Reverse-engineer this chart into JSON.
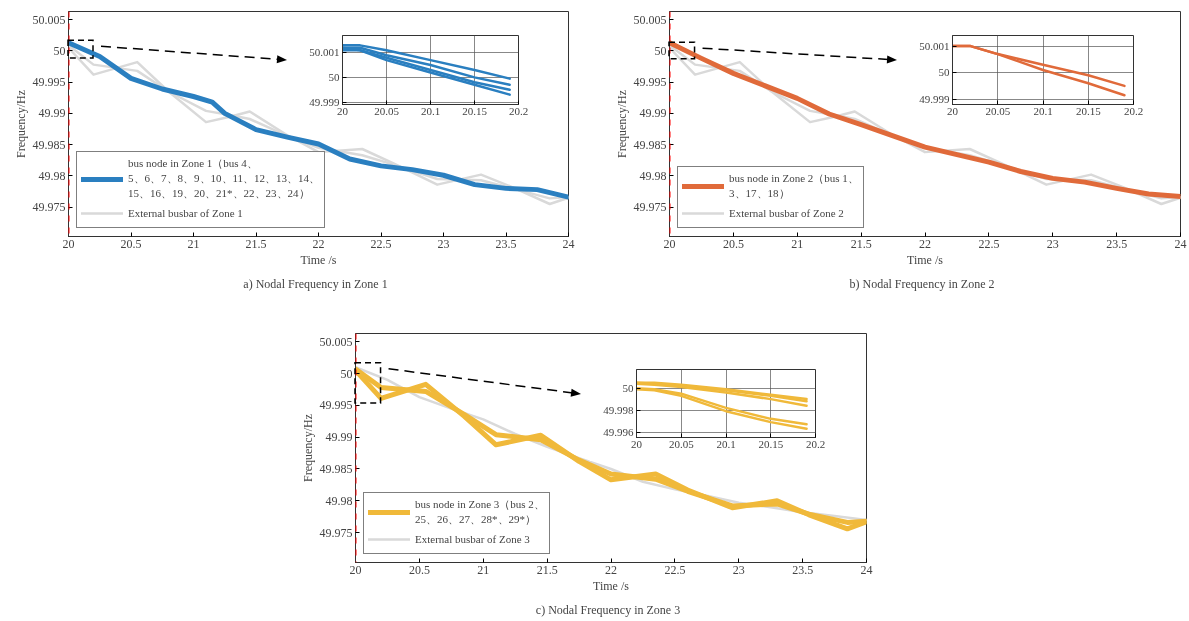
{
  "chart_data": [
    {
      "type": "line",
      "title": "a)   Nodal Frequency in Zone 1",
      "xlabel": "Time /s",
      "ylabel": "Frequency/Hz",
      "xlim": [
        20,
        24
      ],
      "ylim": [
        49.9703,
        50.0063
      ],
      "xticks": [
        20,
        20.5,
        21,
        21.5,
        22,
        22.5,
        23,
        23.5,
        24
      ],
      "yticks": [
        49.975,
        49.98,
        49.985,
        49.99,
        49.995,
        50,
        50.005
      ],
      "grid": false,
      "legend": "bottom left",
      "ref_lines": [
        {
          "axis": "x",
          "value": 20,
          "color": "#ff0000",
          "line_style": "dashed"
        }
      ],
      "series": [
        {
          "name": "bus node in Zone 1（bus 4、5、6、7、8、9、10、11、12、13、14、15、16、19、20、21*、22、23、24）",
          "color": "#2a7fc0",
          "x": [
            20,
            20.25,
            20.5,
            20.75,
            21,
            21.15,
            21.25,
            21.5,
            21.75,
            22,
            22.25,
            22.5,
            22.75,
            23,
            23.25,
            23.5,
            23.75,
            24
          ],
          "values": [
            50.0013,
            49.9991,
            49.9956,
            49.9939,
            49.9927,
            49.9918,
            49.99,
            49.9874,
            49.9862,
            49.9851,
            49.9827,
            49.9816,
            49.981,
            49.9801,
            49.9786,
            49.978,
            49.9778,
            49.9766
          ]
        },
        {
          "name": "External busbar of Zone 1",
          "color": "#d9d9d9",
          "x": [
            20,
            20.2,
            20.55,
            20.8,
            21.1,
            21.3,
            21.45,
            21.75,
            22,
            22.35,
            22.6,
            22.95,
            23.3,
            23.55,
            23.85,
            24
          ],
          "values": [
            50.0005,
            49.9962,
            49.9982,
            49.9935,
            49.9886,
            49.9895,
            49.9903,
            49.9865,
            49.9838,
            49.9843,
            49.982,
            49.9786,
            49.9802,
            49.9782,
            49.9755,
            49.9765
          ]
        },
        {
          "color": "#d9d9d9",
          "x": [
            20,
            20.2,
            20.55,
            20.8,
            21.1,
            21.3,
            21.45,
            21.75,
            22,
            22.35,
            22.6,
            22.95,
            23.3,
            23.55,
            23.85,
            24
          ],
          "values": [
            50.0009,
            49.9978,
            49.9968,
            49.9935,
            49.9904,
            49.9897,
            49.9891,
            49.9864,
            49.9845,
            49.9833,
            49.9818,
            49.9795,
            49.9793,
            49.978,
            49.9764,
            49.9766
          ]
        }
      ]
    },
    {
      "type": "line",
      "xlim": [
        20,
        20.2
      ],
      "ylim": [
        49.9989,
        50.0017
      ],
      "xticks": [
        20,
        20.05,
        20.1,
        20.15,
        20.2
      ],
      "yticks": [
        49.999,
        50,
        50.001
      ],
      "grid": true,
      "series": [
        {
          "color": "#2a7fc0",
          "x": [
            20,
            20.02,
            20.05,
            20.1,
            20.15,
            20.19
          ],
          "values": [
            50.0013,
            50.0013,
            50.0011,
            50.0007,
            50.0003,
            49.99995
          ]
        },
        {
          "color": "#2a7fc0",
          "x": [
            20,
            20.02,
            20.05,
            20.1,
            20.15,
            20.19
          ],
          "values": [
            50.0012,
            50.0012,
            50.0009,
            50.0005,
            50.0,
            49.9997
          ]
        },
        {
          "color": "#2a7fc0",
          "x": [
            20,
            20.02,
            20.05,
            20.1,
            20.15,
            20.19
          ],
          "values": [
            50.0012,
            50.0011,
            50.0008,
            50.0003,
            49.9998,
            49.9995
          ]
        },
        {
          "color": "#2a7fc0",
          "x": [
            20,
            20.02,
            20.05,
            20.1,
            20.15,
            20.19
          ],
          "values": [
            50.0011,
            50.0011,
            50.0007,
            50.0002,
            49.9997,
            49.9993
          ]
        }
      ]
    },
    {
      "type": "line",
      "title": "b)   Nodal Frequency in Zone 2",
      "xlabel": "Time /s",
      "ylabel": "Frequency/Hz",
      "xlim": [
        20,
        24
      ],
      "ylim": [
        49.9703,
        50.0063
      ],
      "xticks": [
        20,
        20.5,
        21,
        21.5,
        22,
        22.5,
        23,
        23.5,
        24
      ],
      "yticks": [
        49.975,
        49.98,
        49.985,
        49.99,
        49.995,
        50,
        50.005
      ],
      "grid": false,
      "legend": "bottom left",
      "ref_lines": [
        {
          "axis": "x",
          "value": 20,
          "color": "#ff0000",
          "line_style": "dashed"
        }
      ],
      "series": [
        {
          "name": "bus node in Zone 2（bus 1、3、17、18）",
          "color": "#e06a3a",
          "x": [
            20,
            20.25,
            20.5,
            20.75,
            21,
            21.25,
            21.5,
            21.75,
            22,
            22.25,
            22.5,
            22.75,
            23,
            23.25,
            23.5,
            23.75,
            24
          ],
          "values": [
            50.0013,
            49.9988,
            49.9964,
            49.9944,
            49.9924,
            49.9899,
            49.9882,
            49.9864,
            49.9846,
            49.9834,
            49.9822,
            49.9807,
            49.9796,
            49.979,
            49.978,
            49.9771,
            49.9767
          ]
        },
        {
          "name": "External busbar of Zone 2",
          "color": "#d9d9d9",
          "x": [
            20,
            20.2,
            20.55,
            20.8,
            21.1,
            21.3,
            21.45,
            21.75,
            22,
            22.35,
            22.6,
            22.95,
            23.3,
            23.55,
            23.85,
            24
          ],
          "values": [
            50.0005,
            49.9962,
            49.9982,
            49.9935,
            49.9886,
            49.9895,
            49.9903,
            49.9865,
            49.9838,
            49.9843,
            49.982,
            49.9786,
            49.9802,
            49.9782,
            49.9755,
            49.9765
          ]
        },
        {
          "color": "#d9d9d9",
          "x": [
            20,
            20.2,
            20.55,
            20.8,
            21.1,
            21.3,
            21.45,
            21.75,
            22,
            22.35,
            22.6,
            22.95,
            23.3,
            23.55,
            23.85,
            24
          ],
          "values": [
            50.0009,
            49.9978,
            49.9968,
            49.9935,
            49.9904,
            49.9897,
            49.9891,
            49.9864,
            49.9845,
            49.9833,
            49.9818,
            49.9795,
            49.9793,
            49.978,
            49.9764,
            49.9766
          ]
        }
      ]
    },
    {
      "type": "line",
      "xlim": [
        20,
        20.2
      ],
      "ylim": [
        49.9988,
        50.0014
      ],
      "xticks": [
        20,
        20.05,
        20.1,
        20.15,
        20.2
      ],
      "yticks": [
        49.999,
        50,
        50.001
      ],
      "grid": true,
      "series": [
        {
          "color": "#e06a3a",
          "x": [
            20,
            20.02,
            20.05,
            20.1,
            20.15,
            20.19
          ],
          "values": [
            50.001,
            50.001,
            50.0007,
            50.0003,
            49.9999,
            49.9995
          ]
        },
        {
          "color": "#e06a3a",
          "x": [
            20,
            20.02,
            20.05,
            20.1,
            20.15,
            20.19
          ],
          "values": [
            50.001,
            50.001,
            50.0007,
            50.0001,
            49.9996,
            49.99915
          ]
        }
      ]
    },
    {
      "type": "line",
      "title": "c)   Nodal Frequency in Zone 3",
      "xlabel": "Time /s",
      "ylabel": "Frequency/Hz",
      "xlim": [
        20,
        24
      ],
      "ylim": [
        49.9703,
        50.0063
      ],
      "xticks": [
        20,
        20.5,
        21,
        21.5,
        22,
        22.5,
        23,
        23.5,
        24
      ],
      "yticks": [
        49.975,
        49.98,
        49.985,
        49.99,
        49.995,
        50,
        50.005
      ],
      "grid": false,
      "legend": "bottom left",
      "ref_lines": [
        {
          "axis": "x",
          "value": 20,
          "color": "#ff0000",
          "line_style": "dashed"
        }
      ],
      "series": [
        {
          "name": "bus node in Zone 3（bus 2、25、26、27、28*、29*）",
          "color": "#f0b93a",
          "x": [
            20,
            20.2,
            20.55,
            20.85,
            21.1,
            21.45,
            21.75,
            22,
            22.35,
            22.6,
            22.95,
            23.3,
            23.55,
            23.85,
            24
          ],
          "values": [
            50.0005,
            49.9961,
            49.9983,
            49.9933,
            49.9888,
            49.9903,
            49.9862,
            49.9833,
            49.9842,
            49.9817,
            49.9789,
            49.98,
            49.9778,
            49.9756,
            49.9767
          ]
        },
        {
          "color": "#f0b93a",
          "x": [
            20,
            20.2,
            20.55,
            20.85,
            21.1,
            21.45,
            21.75,
            22,
            22.35,
            22.6,
            22.95,
            23.3,
            23.55,
            23.85,
            24
          ],
          "values": [
            50.0007,
            49.9978,
            49.9972,
            49.9936,
            49.9904,
            49.9896,
            49.9864,
            49.9842,
            49.9834,
            49.9815,
            49.9792,
            49.9795,
            49.9779,
            49.9766,
            49.9768
          ]
        },
        {
          "name": "External busbar of Zone 3",
          "color": "#d9d9d9",
          "x": [
            20,
            20.25,
            20.5,
            20.75,
            21,
            21.25,
            21.5,
            21.75,
            22,
            22.25,
            22.5,
            22.75,
            23,
            23.25,
            23.5,
            23.75,
            24
          ],
          "values": [
            50.001,
            49.999,
            49.9963,
            49.9945,
            49.9928,
            49.9905,
            49.9885,
            49.9867,
            49.985,
            49.983,
            49.9818,
            49.9808,
            49.9797,
            49.979,
            49.9782,
            49.9776,
            49.977
          ]
        }
      ]
    },
    {
      "type": "line",
      "xlim": [
        20,
        20.2
      ],
      "ylim": [
        49.9955,
        50.0017
      ],
      "xticks": [
        20,
        20.05,
        20.1,
        20.15,
        20.2
      ],
      "yticks": [
        49.996,
        49.998,
        50
      ],
      "grid": true,
      "series": [
        {
          "color": "#f0b93a",
          "x": [
            20,
            20.02,
            20.05,
            20.1,
            20.15,
            20.19
          ],
          "values": [
            50.0005,
            50.0005,
            50.0003,
            49.9999,
            49.9994,
            49.999
          ]
        },
        {
          "color": "#f0b93a",
          "x": [
            20,
            20.02,
            20.05,
            20.1,
            20.15,
            20.19
          ],
          "values": [
            50.0005,
            50.0004,
            50.0002,
            49.9998,
            49.9993,
            49.9988
          ]
        },
        {
          "color": "#f0b93a",
          "x": [
            20,
            20.02,
            20.05,
            20.1,
            20.15,
            20.19
          ],
          "values": [
            50.0004,
            50.0003,
            50.0001,
            49.9996,
            49.999,
            49.9984
          ]
        },
        {
          "color": "#f0b93a",
          "x": [
            20,
            20.02,
            20.05,
            20.1,
            20.15,
            20.19
          ],
          "values": [
            50.0,
            49.9999,
            49.9995,
            49.9982,
            49.9972,
            49.9967
          ]
        },
        {
          "color": "#f0b93a",
          "x": [
            20,
            20.02,
            20.05,
            20.1,
            20.15,
            20.19
          ],
          "values": [
            49.9999,
            49.9998,
            49.9993,
            49.9979,
            49.9969,
            49.9963
          ]
        }
      ]
    }
  ]
}
